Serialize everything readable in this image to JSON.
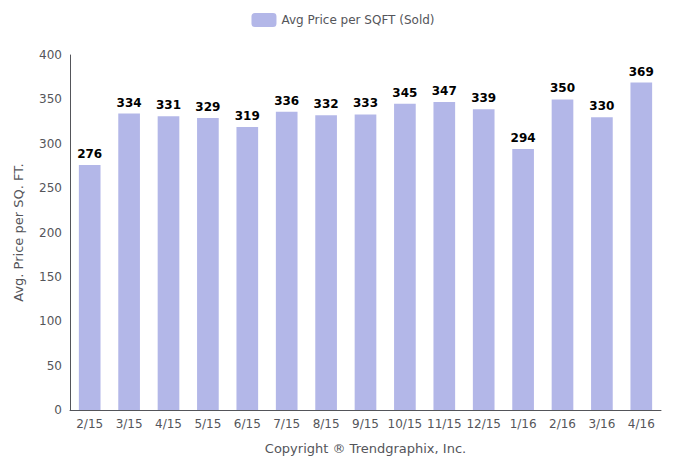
{
  "chart_data": {
    "type": "bar",
    "categories": [
      "2/15",
      "3/15",
      "4/15",
      "5/15",
      "6/15",
      "7/15",
      "8/15",
      "9/15",
      "10/15",
      "11/15",
      "12/15",
      "1/16",
      "2/16",
      "3/16",
      "4/16"
    ],
    "series": [
      {
        "name": "Avg Price per SQFT (Sold)",
        "color": "#b3b7e8",
        "values": [
          276,
          334,
          331,
          329,
          319,
          336,
          332,
          333,
          345,
          347,
          339,
          294,
          350,
          330,
          369
        ]
      }
    ],
    "ylabel": "Avg. Price per SQ. FT.",
    "xlabel": "Copyright ® Trendgraphix, Inc.",
    "ylim": [
      0,
      400
    ],
    "yticks": [
      0,
      50,
      100,
      150,
      200,
      250,
      300,
      350,
      400
    ],
    "grid": false,
    "legend": "top",
    "data_labels": true
  }
}
